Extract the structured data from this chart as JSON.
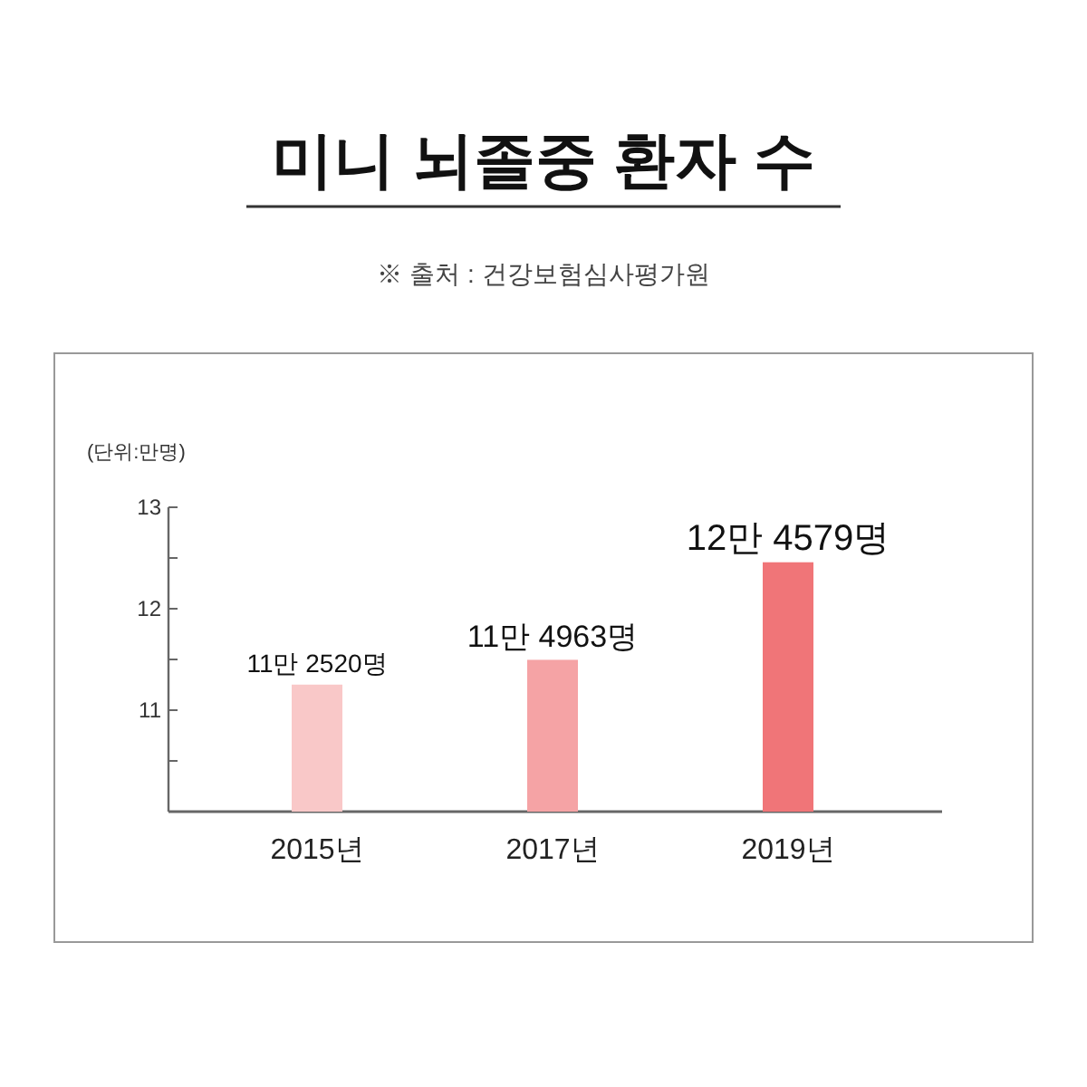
{
  "chart_data": {
    "type": "bar",
    "title": "미니 뇌졸중 환자 수",
    "subtitle": "※ 출처 : 건강보험심사평가원",
    "ylabel": "(단위:만명)",
    "categories": [
      "2015년",
      "2017년",
      "2019년"
    ],
    "values": [
      11.252,
      11.4963,
      12.4579
    ],
    "colors": [
      "#f9c8c8",
      "#f5a3a5",
      "#f07578"
    ],
    "value_labels": [
      "11만 2520명",
      "11만 4963명",
      "12만 4579명"
    ],
    "ylim": [
      10,
      13
    ],
    "yticks": [
      {
        "value": 10.5,
        "label": null
      },
      11,
      {
        "value": 11.5,
        "label": null
      },
      12,
      {
        "value": 12.5,
        "label": null
      },
      13
    ]
  }
}
